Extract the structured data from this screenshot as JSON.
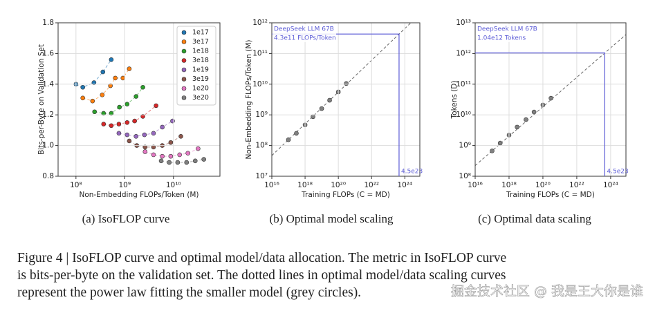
{
  "chart_data": [
    {
      "type": "scatter",
      "caption": "(a)  IsoFLOP curve",
      "xlabel": "Non-Embedding FLOPs/Token (M)",
      "ylabel": "Bits-per-Byte on Validation Set",
      "xscale": "log",
      "xlim": [
        43000000.0,
        90000000000.0
      ],
      "ylim": [
        0.8,
        1.8
      ],
      "xticks": [
        {
          "value": 100000000.0,
          "label": "10⁸"
        },
        {
          "value": 1000000000.0,
          "label": "10⁹"
        },
        {
          "value": 10000000000.0,
          "label": "10¹⁰"
        }
      ],
      "yticks": [
        0.8,
        {
          "value": 1.0,
          "label": "1.0"
        },
        1.2,
        1.4,
        1.6,
        1.8
      ],
      "grid": true,
      "legend": "upper right",
      "fit_lines": "dashed",
      "series": [
        {
          "name": "1e17",
          "color": "#1f77b4",
          "x": [
            100000000.0,
            138000000.0,
            234000000.0,
            357000000.0,
            530000000.0
          ],
          "values": [
            1.4,
            1.38,
            1.41,
            1.48,
            1.56
          ]
        },
        {
          "name": "3e17",
          "color": "#ff7f0e",
          "x": [
            138000000.0,
            219000000.0,
            346000000.0,
            510000000.0,
            640000000.0,
            920000000.0,
            1240000000.0
          ],
          "values": [
            1.31,
            1.29,
            1.33,
            1.39,
            1.44,
            1.44,
            1.5
          ]
        },
        {
          "name": "1e18",
          "color": "#2ca02c",
          "x": [
            241000000.0,
            369000000.0,
            530000000.0,
            780000000.0,
            1120000000.0,
            1710000000.0,
            2360000000.0
          ],
          "values": [
            1.22,
            1.21,
            1.21,
            1.25,
            1.27,
            1.32,
            1.38
          ]
        },
        {
          "name": "3e18",
          "color": "#d62728",
          "x": [
            369000000.0,
            530000000.0,
            760000000.0,
            1120000000.0,
            1600000000.0,
            2360000000.0,
            4400000000.0
          ],
          "values": [
            1.14,
            1.13,
            1.14,
            1.15,
            1.16,
            1.19,
            1.26
          ]
        },
        {
          "name": "1e19",
          "color": "#9467bd",
          "x": [
            760000000.0,
            1120000000.0,
            1710000000.0,
            2540000000.0,
            3900000000.0,
            5900000000.0,
            9600000000.0
          ],
          "values": [
            1.08,
            1.07,
            1.06,
            1.07,
            1.08,
            1.12,
            1.16
          ]
        },
        {
          "name": "3e19",
          "color": "#8c564b",
          "x": [
            1240000000.0,
            1770000000.0,
            2620000000.0,
            3900000000.0,
            5900000000.0,
            8800000000.0,
            14200000000.0
          ],
          "values": [
            1.03,
            1.0,
            0.99,
            0.99,
            1.0,
            1.02,
            1.06
          ]
        },
        {
          "name": "1e20",
          "color": "#e377c2",
          "x": [
            2620000000.0,
            3900000000.0,
            5900000000.0,
            8800000000.0,
            13400000000.0,
            19800000000.0,
            32000000000.0
          ],
          "values": [
            0.96,
            0.94,
            0.93,
            0.93,
            0.94,
            0.95,
            0.98
          ]
        },
        {
          "name": "3e20",
          "color": "#7f7f7f",
          "x": [
            5600000000.0,
            8200000000.0,
            12200000000.0,
            18600000000.0,
            28000000000.0,
            42000000000.0
          ],
          "values": [
            0.9,
            0.89,
            0.89,
            0.89,
            0.9,
            0.91
          ]
        }
      ]
    },
    {
      "type": "scatter",
      "caption": "(b)  Optimal model scaling",
      "xlabel": "Training FLOPs (C = MD)",
      "ylabel": "Non-Embedding FLOPs/Token (M)",
      "xscale": "log",
      "yscale": "log",
      "xlim": [
        1e+16,
        8e+24
      ],
      "ylim": [
        10000000.0,
        1000000000000.0
      ],
      "xticks": [
        {
          "value": 1e+16,
          "label": "10¹⁶"
        },
        {
          "value": 1e+18,
          "label": "10¹⁸"
        },
        {
          "value": 1e+20,
          "label": "10²⁰"
        },
        {
          "value": 1e+22,
          "label": "10²²"
        },
        {
          "value": 1e+24,
          "label": "10²⁴"
        }
      ],
      "yticks": [
        {
          "value": 10000000.0,
          "label": "10⁷"
        },
        {
          "value": 100000000.0,
          "label": "10⁸"
        },
        {
          "value": 1000000000.0,
          "label": "10⁹"
        },
        {
          "value": 10000000000.0,
          "label": "10¹⁰"
        },
        {
          "value": 100000000000.0,
          "label": "10¹¹"
        },
        {
          "value": 1000000000000.0,
          "label": "10¹²"
        }
      ],
      "grid": true,
      "fit_lines": "dashed",
      "series": [
        {
          "color": "#808080",
          "x": [
            1e+17,
            3e+17,
            1e+18,
            3e+18,
            1e+19,
            3e+19,
            1e+20,
            3e+20
          ],
          "values": [
            155000000.0,
            250000000.0,
            470000000.0,
            870000000.0,
            1600000000.0,
            3000000000.0,
            5600000000.0,
            10500000000.0
          ]
        }
      ],
      "highlight": {
        "name": "DeepSeek LLM 67B",
        "x": 4.5e+23,
        "y": 430000000000.0,
        "x_label": "4.5e23",
        "y_label": "4.3e11 FLOPs/Token",
        "color": "#5b5bd6"
      }
    },
    {
      "type": "scatter",
      "caption": "(c)  Optimal data scaling",
      "xlabel": "Training FLOPs (C = MD)",
      "ylabel": "Tokens (D)",
      "xscale": "log",
      "yscale": "log",
      "xlim": [
        1e+16,
        8e+24
      ],
      "ylim": [
        100000000.0,
        10000000000000.0
      ],
      "xticks": [
        {
          "value": 1e+16,
          "label": "10¹⁶"
        },
        {
          "value": 1e+18,
          "label": "10¹⁸"
        },
        {
          "value": 1e+20,
          "label": "10²⁰"
        },
        {
          "value": 1e+22,
          "label": "10²²"
        },
        {
          "value": 1e+24,
          "label": "10²⁴"
        }
      ],
      "yticks": [
        {
          "value": 100000000.0,
          "label": "10⁸"
        },
        {
          "value": 1000000000.0,
          "label": "10⁹"
        },
        {
          "value": 10000000000.0,
          "label": "10¹⁰"
        },
        {
          "value": 100000000000.0,
          "label": "10¹¹"
        },
        {
          "value": 1000000000000.0,
          "label": "10¹²"
        },
        {
          "value": 10000000000000.0,
          "label": "10¹³"
        }
      ],
      "grid": true,
      "fit_lines": "dashed",
      "series": [
        {
          "color": "#808080",
          "x": [
            1e+17,
            3e+17,
            1e+18,
            3e+18,
            1e+19,
            3e+19,
            1e+20,
            3e+20
          ],
          "values": [
            670000000.0,
            1200000000.0,
            2200000000.0,
            4000000000.0,
            7000000000.0,
            12400000000.0,
            21000000000.0,
            35000000000.0
          ]
        }
      ],
      "highlight": {
        "name": "DeepSeek LLM 67B",
        "x": 4.5e+23,
        "y": 1040000000000.0,
        "x_label": "4.5e23",
        "y_label": "1.04e12 Tokens",
        "color": "#5b5bd6"
      }
    }
  ],
  "figure_caption": [
    "Figure 4 | IsoFLOP curve and optimal model/data allocation.  The metric in IsoFLOP curve",
    "is bits-per-byte on the validation set. The dotted lines in optimal model/data scaling curves",
    "represent the power law fitting the smaller model (grey circles)."
  ],
  "watermark": "掘金技术社区 @ 我是王大你是谁"
}
